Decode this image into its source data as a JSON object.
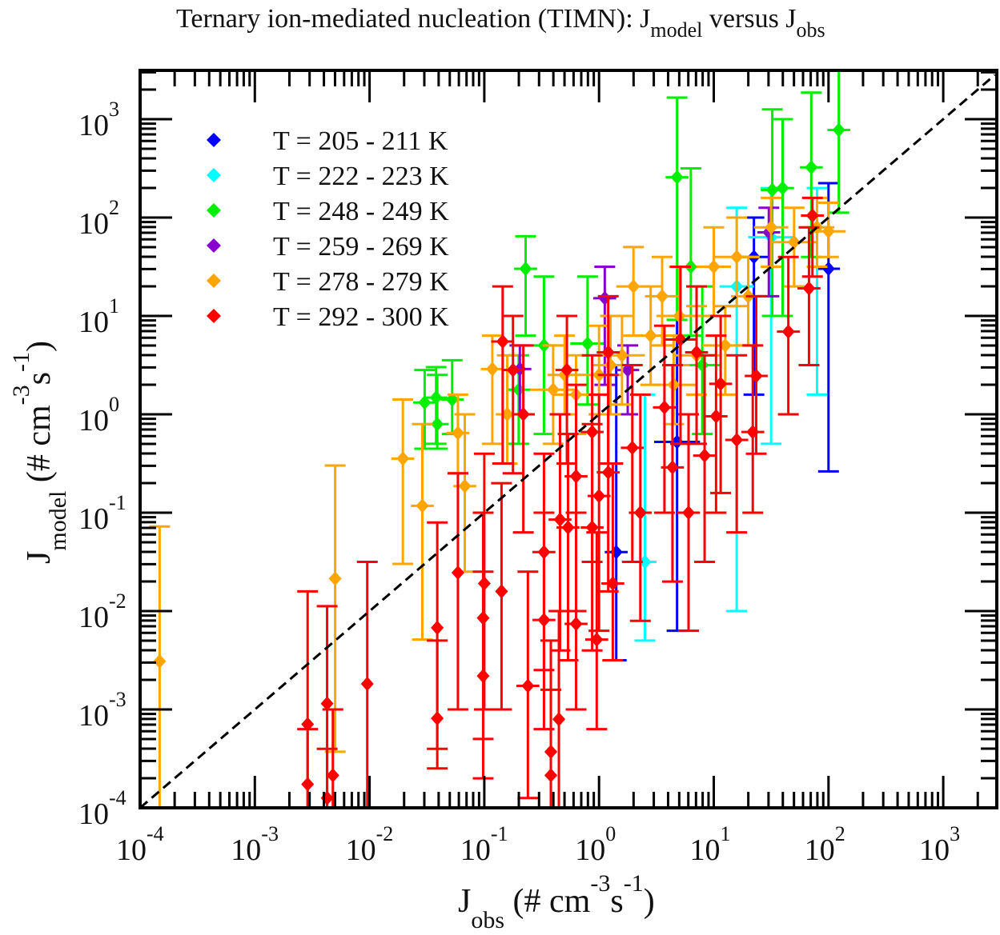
{
  "chart_data": {
    "type": "scatter",
    "title": {
      "main": "Ternary ion-mediated  nucleation (TIMN): J",
      "sub1": "model",
      "mid": " versus J",
      "sub2": "obs"
    },
    "xlabel": {
      "main": "J",
      "sub": "obs",
      "units": " (# cm",
      "exp1": "-3",
      "s": "s",
      "exp2": "-1",
      "close": ")"
    },
    "ylabel": {
      "main": "J",
      "sub": "model",
      "units": " (# cm",
      "exp1": "-3",
      "s": "s",
      "exp2": "-1",
      "close": ")"
    },
    "xscale": "log",
    "yscale": "log",
    "xlim": [
      0.0001,
      3000
    ],
    "ylim": [
      0.0001,
      3000
    ],
    "x_ticks": [
      {
        "base": "10",
        "exp": "-4",
        "v": -4
      },
      {
        "base": "10",
        "exp": "-3",
        "v": -3
      },
      {
        "base": "10",
        "exp": "-2",
        "v": -2
      },
      {
        "base": "10",
        "exp": "-1",
        "v": -1
      },
      {
        "base": "10",
        "exp": "0",
        "v": 0
      },
      {
        "base": "10",
        "exp": "1",
        "v": 1
      },
      {
        "base": "10",
        "exp": "2",
        "v": 2
      },
      {
        "base": "10",
        "exp": "3",
        "v": 3
      }
    ],
    "y_ticks": [
      {
        "base": "10",
        "exp": "-4",
        "v": -4
      },
      {
        "base": "10",
        "exp": "-3",
        "v": -3
      },
      {
        "base": "10",
        "exp": "-2",
        "v": -2
      },
      {
        "base": "10",
        "exp": "-1",
        "v": -1
      },
      {
        "base": "10",
        "exp": "0",
        "v": 0
      },
      {
        "base": "10",
        "exp": "1",
        "v": 1
      },
      {
        "base": "10",
        "exp": "2",
        "v": 2
      },
      {
        "base": "10",
        "exp": "3",
        "v": 3
      }
    ],
    "reference_line": "1:1 (dashed)",
    "legend_position": "top-left",
    "point_format": "[log10 Jobs, log10 Jmodel, log10 lower bound, log10 upper bound, log10 x half-error]",
    "series": [
      {
        "name": "T = 205 - 211 K",
        "color": "#0000ff",
        "points": [
          [
            0.68,
            -0.28,
            -2.2,
            1.0,
            0.2
          ],
          [
            2.0,
            1.48,
            -0.58,
            2.35,
            0.1
          ],
          [
            1.35,
            1.6,
            0.2,
            2.0,
            0.15
          ],
          [
            0.15,
            -1.4,
            -2.5,
            0.5,
            0.1
          ]
        ]
      },
      {
        "name": "T = 222 - 223 K",
        "color": "#00ffff",
        "points": [
          [
            1.2,
            1.3,
            -2.0,
            2.1,
            0.15
          ],
          [
            0.4,
            -1.5,
            -2.3,
            0.2,
            0.1
          ],
          [
            1.5,
            1.8,
            -0.3,
            2.3,
            0.2
          ],
          [
            1.9,
            1.9,
            0.2,
            2.3,
            0.1
          ]
        ]
      },
      {
        "name": "T = 248 - 249 K",
        "color": "#00ee00",
        "points": [
          [
            -1.52,
            0.12,
            -0.35,
            0.45,
            0.1
          ],
          [
            -1.42,
            0.17,
            -0.3,
            0.48,
            0.1
          ],
          [
            -1.41,
            -0.1,
            -0.35,
            0.4,
            0.1
          ],
          [
            -1.28,
            0.15,
            -0.2,
            0.55,
            0.1
          ],
          [
            -0.64,
            1.48,
            0.8,
            1.81,
            0.1
          ],
          [
            -0.48,
            0.7,
            -0.2,
            1.4,
            0.1
          ],
          [
            -0.1,
            0.72,
            0.1,
            1.4,
            0.15
          ],
          [
            0.68,
            2.41,
            0.96,
            3.22,
            0.1
          ],
          [
            1.51,
            2.28,
            1.0,
            3.1,
            0.1
          ],
          [
            1.85,
            2.51,
            1.6,
            3.27,
            0.1
          ],
          [
            2.09,
            2.89,
            2.05,
            3.5,
            0.1
          ],
          [
            1.6,
            2.3,
            1.0,
            3.0,
            0.1
          ],
          [
            0.8,
            1.5,
            0.8,
            2.5,
            0.1
          ],
          [
            -0.7,
            0.25,
            -0.3,
            0.6,
            0.1
          ],
          [
            0.9,
            0.5,
            -0.2,
            1.3,
            0.15
          ]
        ]
      },
      {
        "name": "T = 259 - 269 K",
        "color": "#8800cc",
        "points": [
          [
            0.05,
            1.18,
            0.3,
            1.5,
            0.1
          ],
          [
            -0.69,
            0.46,
            0.0,
            0.7,
            0.1
          ],
          [
            1.48,
            1.85,
            1.2,
            2.1,
            0.1
          ],
          [
            0.25,
            0.45,
            0.0,
            0.7,
            0.1
          ]
        ]
      },
      {
        "name": "T = 278 - 279 K",
        "color": "#ffa500",
        "points": [
          [
            -3.83,
            -2.51,
            -4.0,
            -1.14,
            0
          ],
          [
            -2.3,
            -1.67,
            -3.43,
            -0.52,
            0
          ],
          [
            -1.71,
            -0.45,
            -1.52,
            0.15,
            0.1
          ],
          [
            -1.54,
            -0.93,
            -2.29,
            -0.1,
            0.1
          ],
          [
            -1.23,
            -0.19,
            -0.6,
            0.2,
            0.1
          ],
          [
            -1.17,
            -0.73,
            -1.6,
            0.0,
            0.1
          ],
          [
            -0.93,
            0.46,
            -0.3,
            0.8,
            0.1
          ],
          [
            -0.8,
            0.0,
            -0.5,
            0.6,
            0.1
          ],
          [
            -0.4,
            0.25,
            -0.3,
            0.7,
            0.2
          ],
          [
            -0.2,
            0.2,
            -0.2,
            0.6,
            0.2
          ],
          [
            0.0,
            0.4,
            0.0,
            0.9,
            0.2
          ],
          [
            0.2,
            0.6,
            0.1,
            1.0,
            0.2
          ],
          [
            0.3,
            1.3,
            0.8,
            1.7,
            0.15
          ],
          [
            0.45,
            0.8,
            0.3,
            1.3,
            0.2
          ],
          [
            0.55,
            1.2,
            0.7,
            1.6,
            0.15
          ],
          [
            0.7,
            1.0,
            0.5,
            1.5,
            0.2
          ],
          [
            0.85,
            0.6,
            0.2,
            1.1,
            0.2
          ],
          [
            1.0,
            1.5,
            1.0,
            1.9,
            0.15
          ],
          [
            1.2,
            1.6,
            1.1,
            2.0,
            0.2
          ],
          [
            1.3,
            1.2,
            0.7,
            1.6,
            0.15
          ],
          [
            1.5,
            1.9,
            1.5,
            2.2,
            0.15
          ],
          [
            1.7,
            1.75,
            1.3,
            2.1,
            0.2
          ],
          [
            1.9,
            1.9,
            1.5,
            2.2,
            0.15
          ],
          [
            2.0,
            1.86,
            1.6,
            2.15,
            0.15
          ],
          [
            0.1,
            0.5,
            0.0,
            1.0,
            0.15
          ],
          [
            -0.3,
            0.4,
            0.0,
            0.8,
            0.15
          ],
          [
            0.65,
            0.3,
            -0.1,
            0.8,
            0.2
          ],
          [
            1.1,
            0.7,
            0.2,
            1.1,
            0.2
          ]
        ]
      },
      {
        "name": "T = 292 - 300 K",
        "color": "#ff0000",
        "points": [
          [
            -2.54,
            -3.15,
            -4.0,
            -1.8,
            0
          ],
          [
            -2.54,
            -3.76,
            -4.0,
            -3.2,
            0
          ],
          [
            -2.37,
            -2.94,
            -4.0,
            -1.95,
            0
          ],
          [
            -2.32,
            -3.67,
            -4.0,
            -3.0,
            0
          ],
          [
            -2.37,
            -3.9,
            -4.0,
            -3.4,
            0
          ],
          [
            -2.02,
            -2.74,
            -4.0,
            -1.5,
            0
          ],
          [
            -1.41,
            -2.17,
            -3.4,
            -1.1,
            0
          ],
          [
            -1.41,
            -3.09,
            -3.6,
            -2.3,
            0
          ],
          [
            -1.23,
            -1.61,
            -3.0,
            -0.6,
            0
          ],
          [
            -1.01,
            -2.66,
            -3.7,
            -1.6,
            0
          ],
          [
            -1.01,
            -2.07,
            -3.3,
            -1.0,
            0
          ],
          [
            -1.0,
            -1.72,
            -3.0,
            -0.4,
            0
          ],
          [
            -0.85,
            -1.8,
            -3.0,
            -0.7,
            0.05
          ],
          [
            -0.84,
            0.74,
            -0.5,
            1.3,
            0.1
          ],
          [
            -0.66,
            0.0,
            -1.2,
            0.7,
            0.1
          ],
          [
            -0.62,
            -2.76,
            -3.9,
            -1.6,
            0.1
          ],
          [
            -0.48,
            -2.09,
            -3.2,
            -1.0,
            0.1
          ],
          [
            -0.42,
            -3.43,
            -4.0,
            -2.3,
            0.05
          ],
          [
            -0.42,
            -3.67,
            -4.0,
            -2.8,
            0.05
          ],
          [
            -0.35,
            -3.1,
            -4.0,
            -2.0,
            0.05
          ],
          [
            -0.28,
            0.45,
            -0.5,
            1.0,
            0.1
          ],
          [
            -0.27,
            -1.15,
            -2.5,
            -0.2,
            0.1
          ],
          [
            -0.2,
            -0.63,
            -2.0,
            0.3,
            0.1
          ],
          [
            -0.06,
            -0.18,
            -1.5,
            0.6,
            0.1
          ],
          [
            0.0,
            -0.83,
            -2.2,
            0.2,
            0.1
          ],
          [
            0.08,
            0.63,
            -0.5,
            1.2,
            0.1
          ],
          [
            0.12,
            -1.72,
            -2.5,
            -0.5,
            0.1
          ],
          [
            0.29,
            -0.34,
            -1.5,
            0.5,
            0.1
          ],
          [
            0.64,
            -0.54,
            -1.7,
            0.5,
            0.1
          ],
          [
            0.71,
            0.76,
            -0.3,
            1.5,
            0.15
          ],
          [
            0.78,
            -1.0,
            -2.2,
            0.0,
            0.1
          ],
          [
            0.92,
            -0.42,
            -1.5,
            0.6,
            0.1
          ],
          [
            1.02,
            -0.02,
            -1.0,
            0.8,
            0.1
          ],
          [
            1.06,
            0.31,
            -0.8,
            1.0,
            0.1
          ],
          [
            1.2,
            -0.26,
            -1.2,
            0.6,
            0.1
          ],
          [
            1.34,
            -0.18,
            -1.0,
            0.7,
            0.1
          ],
          [
            1.37,
            0.39,
            -0.4,
            1.2,
            0.1
          ],
          [
            1.65,
            0.84,
            0.0,
            1.6,
            0.1
          ],
          [
            1.83,
            1.28,
            0.5,
            1.9,
            0.1
          ],
          [
            1.86,
            2.02,
            1.4,
            2.2,
            0.1
          ],
          [
            0.08,
            -0.59,
            -1.8,
            0.4,
            0.1
          ],
          [
            -0.06,
            -1.15,
            -2.4,
            -0.1,
            0.1
          ],
          [
            -0.2,
            -2.13,
            -3.0,
            -1.0,
            0.1
          ],
          [
            -0.02,
            -2.29,
            -3.2,
            -1.2,
            0.1
          ],
          [
            -0.34,
            -1.07,
            -2.4,
            0.0,
            0.1
          ],
          [
            -0.48,
            -1.4,
            -2.6,
            -0.4,
            0.1
          ],
          [
            0.36,
            -1.0,
            -2.1,
            0.2,
            0.1
          ],
          [
            0.57,
            0.07,
            -1.0,
            0.9,
            0.1
          ],
          [
            0.85,
            0.63,
            -0.3,
            1.3,
            0.1
          ],
          [
            -0.75,
            0.45,
            -0.6,
            1.0,
            0.1
          ]
        ]
      }
    ]
  }
}
